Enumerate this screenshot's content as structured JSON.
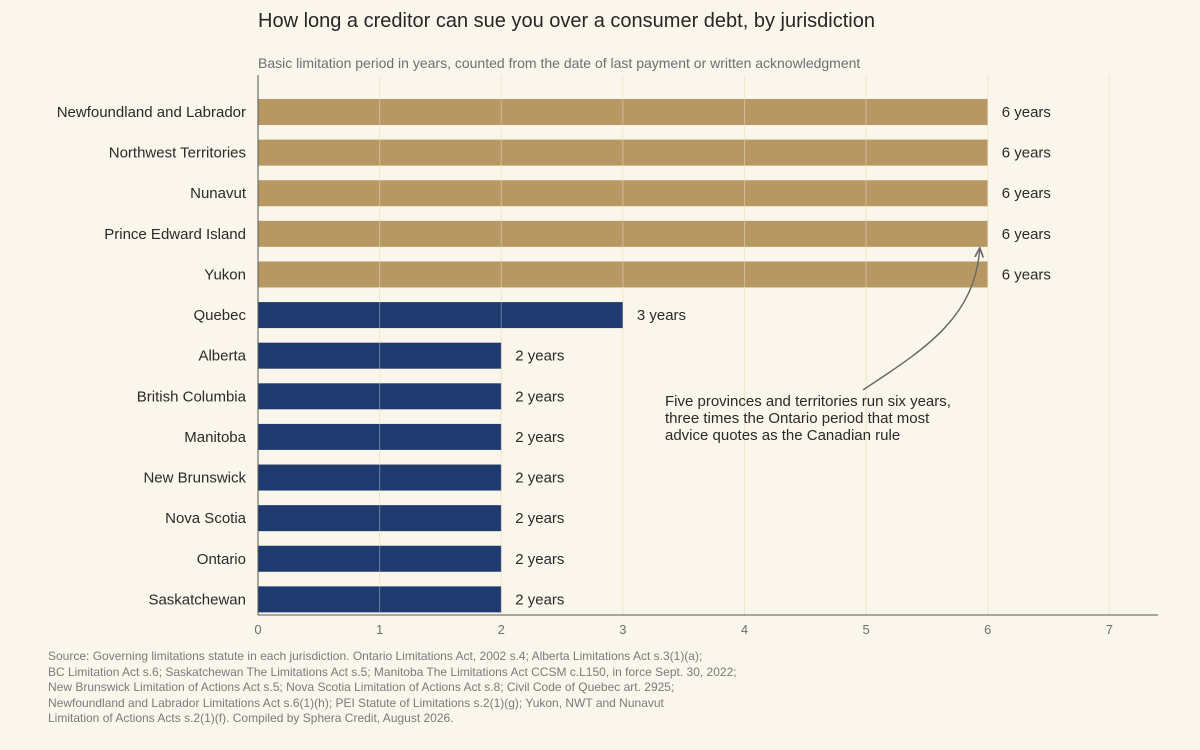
{
  "chart_data": {
    "type": "bar",
    "orientation": "horizontal",
    "title": "How long a creditor can sue you over a consumer debt, by jurisdiction",
    "subtitle": "Basic limitation period in years, counted from the date of last payment or written acknowledgment",
    "xlabel": "",
    "ylabel": "",
    "xlim": [
      0,
      7.4
    ],
    "xticks": [
      0,
      1,
      2,
      3,
      4,
      5,
      6,
      7
    ],
    "grid": "vertical",
    "categories": [
      "Newfoundland and Labrador",
      "Northwest Territories",
      "Nunavut",
      "Prince Edward Island",
      "Yukon",
      "Quebec",
      "Alberta",
      "British Columbia",
      "Manitoba",
      "New Brunswick",
      "Nova Scotia",
      "Ontario",
      "Saskatchewan"
    ],
    "values": [
      6,
      6,
      6,
      6,
      6,
      3,
      2,
      2,
      2,
      2,
      2,
      2,
      2
    ],
    "value_labels": [
      "6 years",
      "6 years",
      "6 years",
      "6 years",
      "6 years",
      "3 years",
      "2 years",
      "2 years",
      "2 years",
      "2 years",
      "2 years",
      "2 years",
      "2 years"
    ],
    "colors": {
      "six_year": "#b89862",
      "other": "#1e3a6e",
      "grid": "#e8dcb4",
      "axis": "#555555"
    },
    "annotation": {
      "lines": [
        "Five provinces and territories run six years,",
        "three times the Ontario period that most",
        "advice quotes as the Canadian rule"
      ],
      "points_to": {
        "category": "Prince Edward Island",
        "value": 6
      }
    }
  },
  "source": {
    "lines": [
      "Source: Governing limitations statute in each jurisdiction. Ontario Limitations Act, 2002 s.4; Alberta Limitations Act s.3(1)(a);",
      "BC Limitation Act s.6; Saskatchewan The Limitations Act s.5; Manitoba The Limitations Act CCSM c.L150, in force Sept. 30, 2022;",
      "New Brunswick Limitation of Actions Act s.5; Nova Scotia Limitation of Actions Act s.8; Civil Code of Quebec art. 2925;",
      "Newfoundland and Labrador Limitations Act s.6(1)(h); PEI Statute of Limitations s.2(1)(g); Yukon, NWT and Nunavut",
      "Limitation of Actions Acts s.2(1)(f). Compiled by Sphera Credit, August 2026."
    ]
  }
}
